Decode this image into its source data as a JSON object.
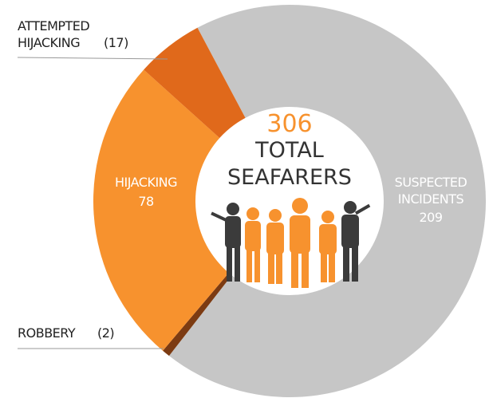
{
  "chart_data": {
    "type": "donut",
    "categories": [
      "SUSPECTED INCIDENTS",
      "ROBBERY",
      "HIJACKING",
      "ATTEMPTED HIJACKING"
    ],
    "values": [
      209,
      2,
      78,
      17
    ],
    "value_labels": [
      "209",
      "(2)",
      "78",
      "(17)"
    ],
    "colors": [
      "#c6c6c6",
      "#7c3b12",
      "#f7922e",
      "#e0691b"
    ],
    "total": 306,
    "center_lines": [
      "TOTAL",
      "SEAFARERS"
    ]
  }
}
